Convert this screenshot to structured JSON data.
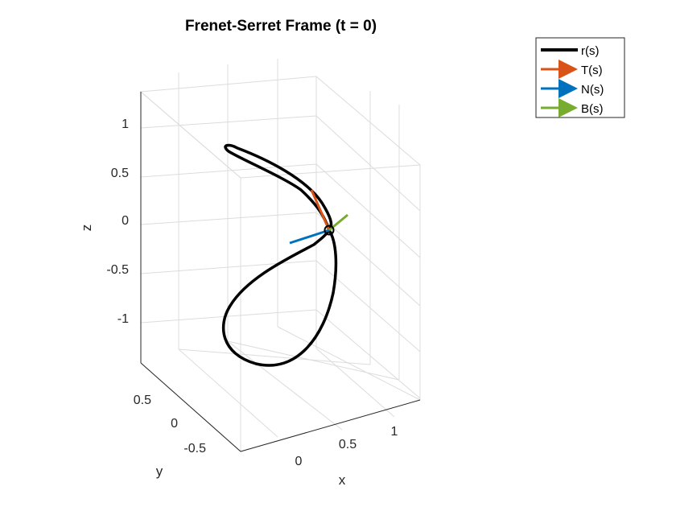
{
  "chart_data": {
    "type": "line",
    "title": "Frenet-Serret Frame (t = 0)",
    "xlabel": "x",
    "ylabel": "y",
    "zlabel": "z",
    "xlim": [
      -0.5,
      1.5
    ],
    "ylim": [
      -1,
      1
    ],
    "zlim": [
      -1.4,
      1.4
    ],
    "x_ticks": [
      "0",
      "0.5",
      "1"
    ],
    "y_ticks": [
      "0.5",
      "0",
      "-0.5"
    ],
    "z_ticks": [
      "1",
      "0.5",
      "0",
      "-0.5",
      "-1"
    ],
    "grid": true,
    "legend_position": "top-right",
    "series": [
      {
        "name": "r(s)",
        "color": "#000000",
        "kind": "curve"
      },
      {
        "name": "T(s)",
        "color": "#D95319",
        "kind": "arrow"
      },
      {
        "name": "N(s)",
        "color": "#0072BD",
        "kind": "arrow"
      },
      {
        "name": "B(s)",
        "color": "#77AC30",
        "kind": "arrow"
      }
    ],
    "marker": {
      "shape": "circle",
      "color": "#000000"
    }
  }
}
